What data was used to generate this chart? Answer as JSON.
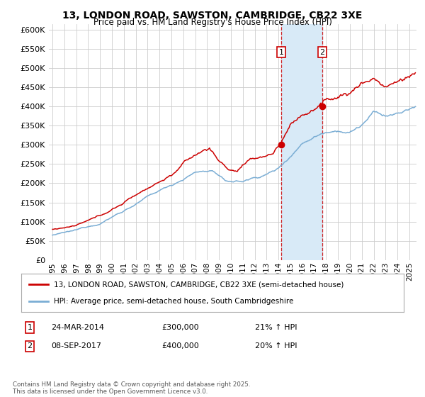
{
  "title": "13, LONDON ROAD, SAWSTON, CAMBRIDGE, CB22 3XE",
  "subtitle": "Price paid vs. HM Land Registry's House Price Index (HPI)",
  "ylabel_ticks": [
    "£0",
    "£50K",
    "£100K",
    "£150K",
    "£200K",
    "£250K",
    "£300K",
    "£350K",
    "£400K",
    "£450K",
    "£500K",
    "£550K",
    "£600K"
  ],
  "ytick_values": [
    0,
    50000,
    100000,
    150000,
    200000,
    250000,
    300000,
    350000,
    400000,
    450000,
    500000,
    550000,
    600000
  ],
  "ylim": [
    0,
    615000
  ],
  "sale1_date": 2014.23,
  "sale1_price": 300000,
  "sale1_date_str": "24-MAR-2014",
  "sale1_hpi_change": "21% ↑ HPI",
  "sale2_date": 2017.68,
  "sale2_price": 400000,
  "sale2_date_str": "08-SEP-2017",
  "sale2_hpi_change": "20% ↑ HPI",
  "legend_line1": "13, LONDON ROAD, SAWSTON, CAMBRIDGE, CB22 3XE (semi-detached house)",
  "legend_line2": "HPI: Average price, semi-detached house, South Cambridgeshire",
  "footer": "Contains HM Land Registry data © Crown copyright and database right 2025.\nThis data is licensed under the Open Government Licence v3.0.",
  "red_color": "#cc0000",
  "blue_color": "#7aadd4",
  "shade_color": "#d8eaf7",
  "grid_color": "#cccccc",
  "bg_color": "#ffffff"
}
